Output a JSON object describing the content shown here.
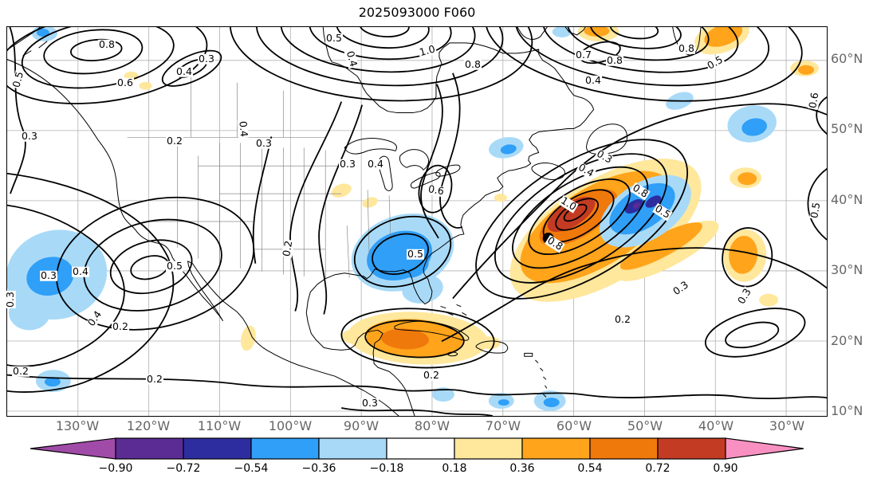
{
  "chart_data": {
    "type": "heatmap",
    "subtype": "filled-contour-weather-map",
    "title": "2025093000 F060",
    "x_ticks": [
      "130°W",
      "120°W",
      "110°W",
      "100°W",
      "90°W",
      "80°W",
      "70°W",
      "60°W",
      "50°W",
      "40°W",
      "30°W"
    ],
    "y_ticks": [
      "60°N",
      "50°N",
      "40°N",
      "30°N",
      "20°N",
      "10°N"
    ],
    "xlim": [
      "140°W",
      "24°W"
    ],
    "ylim": [
      "9°N",
      "64°N"
    ],
    "grid": true,
    "contour_levels_labeled": [
      "0.2",
      "0.3",
      "0.4",
      "0.5",
      "0.6",
      "0.7",
      "0.8",
      "1.0"
    ],
    "colorbar": {
      "orientation": "horizontal",
      "extend": "both",
      "tick_labels": [
        "−0.90",
        "−0.72",
        "−0.54",
        "−0.36",
        "−0.18",
        "0.18",
        "0.36",
        "0.54",
        "0.72",
        "0.90"
      ],
      "colors": [
        "#A04BA8",
        "#5B2C94",
        "#2D2DA0",
        "#2F9FF8",
        "#A8DAF8",
        "#FFFFFF",
        "#FFE79C",
        "#FFA41B",
        "#F0790B",
        "#C43B23",
        "#F891C1"
      ]
    },
    "marker": {
      "symbol": "filled-circle",
      "color": "#000000",
      "approx_lon": "60°W",
      "approx_lat": "34°N"
    },
    "anomaly_regions": [
      {
        "sign": "positive",
        "peak_band": "0.72 to 0.90",
        "approx": "61°W 36°N"
      },
      {
        "sign": "negative",
        "peak_band": "-0.72 to -0.90",
        "approx": "51°W 38°N"
      },
      {
        "sign": "negative",
        "peak_band": "-0.36 to -0.54",
        "approx": "84°W 32°N"
      },
      {
        "sign": "positive",
        "peak_band": "0.36 to 0.54",
        "approx": "82°W 20°N"
      },
      {
        "sign": "negative",
        "peak_band": "-0.36 to -0.54",
        "approx": "133°W 30°N"
      },
      {
        "sign": "positive",
        "peak_band": "0.36 to 0.54",
        "approx": "36°W 30°N"
      },
      {
        "sign": "negative",
        "peak_band": "-0.36",
        "approx": "35°W 48°N"
      },
      {
        "sign": "positive",
        "peak_band": "0.36 to 0.54",
        "approx": "39°W 62°N"
      }
    ],
    "contour_labels": [
      {
        "value": "0.8",
        "x": 125,
        "y": 22,
        "rot": 0
      },
      {
        "value": "0.3",
        "x": 250,
        "y": 40,
        "rot": 0
      },
      {
        "value": "0.4",
        "x": 222,
        "y": 56,
        "rot": 0
      },
      {
        "value": "0.6",
        "x": 148,
        "y": 70,
        "rot": 0
      },
      {
        "value": "0.5",
        "x": 14,
        "y": 66,
        "rot": -75
      },
      {
        "value": "0.5",
        "x": 410,
        "y": 14,
        "rot": 0
      },
      {
        "value": "1.0",
        "x": 527,
        "y": 30,
        "rot": -15
      },
      {
        "value": "0.8",
        "x": 584,
        "y": 47,
        "rot": 0
      },
      {
        "value": "0.4",
        "x": 432,
        "y": 40,
        "rot": 75
      },
      {
        "value": "0.6",
        "x": 538,
        "y": 205,
        "rot": 10
      },
      {
        "value": "0.3",
        "x": 322,
        "y": 146,
        "rot": 0
      },
      {
        "value": "0.4",
        "x": 296,
        "y": 128,
        "rot": 85
      },
      {
        "value": "0.2",
        "x": 210,
        "y": 143,
        "rot": 0
      },
      {
        "value": "0.3",
        "x": 28,
        "y": 137,
        "rot": 0
      },
      {
        "value": "0.4",
        "x": 92,
        "y": 307,
        "rot": 0
      },
      {
        "value": "0.3",
        "x": 52,
        "y": 312,
        "rot": 0
      },
      {
        "value": "0.5",
        "x": 210,
        "y": 300,
        "rot": 0
      },
      {
        "value": "0.2",
        "x": 142,
        "y": 376,
        "rot": 0
      },
      {
        "value": "0.4",
        "x": 110,
        "y": 366,
        "rot": -55
      },
      {
        "value": "0.3",
        "x": 4,
        "y": 342,
        "rot": -90
      },
      {
        "value": "0.2",
        "x": 17,
        "y": 432,
        "rot": 0
      },
      {
        "value": "0.2",
        "x": 185,
        "y": 442,
        "rot": 0
      },
      {
        "value": "0.2",
        "x": 532,
        "y": 437,
        "rot": 0
      },
      {
        "value": "0.3",
        "x": 455,
        "y": 472,
        "rot": 0
      },
      {
        "value": "0.5",
        "x": 512,
        "y": 285,
        "rot": 0
      },
      {
        "value": "0.3",
        "x": 427,
        "y": 172,
        "rot": 0
      },
      {
        "value": "0.4",
        "x": 462,
        "y": 172,
        "rot": 0
      },
      {
        "value": "0.2",
        "x": 352,
        "y": 278,
        "rot": -80
      },
      {
        "value": "0.4",
        "x": 726,
        "y": 180,
        "rot": 30
      },
      {
        "value": "0.3",
        "x": 749,
        "y": 163,
        "rot": 30
      },
      {
        "value": "1.0",
        "x": 704,
        "y": 222,
        "rot": 32
      },
      {
        "value": "0.8",
        "x": 687,
        "y": 272,
        "rot": 32
      },
      {
        "value": "0.8",
        "x": 794,
        "y": 206,
        "rot": 32
      },
      {
        "value": "0.5",
        "x": 822,
        "y": 232,
        "rot": 32
      },
      {
        "value": "0.2",
        "x": 772,
        "y": 367,
        "rot": 0
      },
      {
        "value": "0.3",
        "x": 845,
        "y": 328,
        "rot": -35
      },
      {
        "value": "0.3",
        "x": 925,
        "y": 338,
        "rot": -60
      },
      {
        "value": "0.5",
        "x": 1014,
        "y": 230,
        "rot": -80
      },
      {
        "value": "0.4",
        "x": 735,
        "y": 67,
        "rot": 0
      },
      {
        "value": "0.7",
        "x": 723,
        "y": 35,
        "rot": 0
      },
      {
        "value": "0.8",
        "x": 762,
        "y": 42,
        "rot": 0
      },
      {
        "value": "0.8",
        "x": 852,
        "y": 27,
        "rot": 0
      },
      {
        "value": "0.5",
        "x": 888,
        "y": 45,
        "rot": -30
      },
      {
        "value": "0.6",
        "x": 1012,
        "y": 92,
        "rot": -80
      }
    ]
  }
}
